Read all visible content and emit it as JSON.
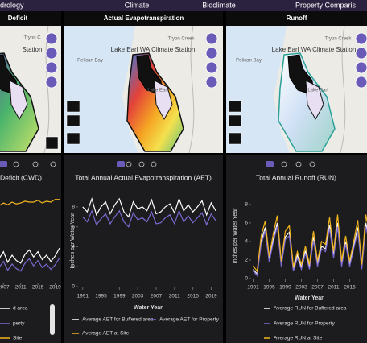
{
  "nav": [
    "drology",
    "Climate",
    "Bioclimate",
    "Property Comparis"
  ],
  "maps": [
    {
      "title": "Deficit",
      "labels": [
        "Tryon C",
        "Station"
      ]
    },
    {
      "title": "Actual Evapotranspiration",
      "labels": [
        "Tryon Creek",
        "Lake Earl WA Climate Station",
        "Pelican Bay",
        "Lake Earl"
      ]
    },
    {
      "title": "Runoff",
      "labels": [
        "Tryon Creek",
        "Lake Earl WA Climate Station",
        "Pelican Bay",
        "Lake Earl"
      ]
    }
  ],
  "chart_data": [
    {
      "type": "line",
      "title": "Deficit (CWD)",
      "x": [
        2006,
        2007,
        2008,
        2009,
        2010,
        2011,
        2012,
        2013,
        2014,
        2015,
        2016,
        2017,
        2018,
        2019,
        2020
      ],
      "xlim": [
        2006.2,
        2020.4
      ],
      "xticks": [
        2007,
        2011,
        2015,
        2019
      ],
      "ylim": [
        0,
        10
      ],
      "series": [
        {
          "name": "d area",
          "color": "#ffffff",
          "values": [
            2.6,
            3.4,
            2.2,
            3.0,
            2.4,
            2.1,
            3.1,
            3.6,
            2.8,
            3.4,
            2.5,
            3.0,
            2.3,
            2.9,
            3.8
          ]
        },
        {
          "name": "perty",
          "color": "#7b68d0",
          "values": [
            1.6,
            2.3,
            1.3,
            2.0,
            1.5,
            1.2,
            2.1,
            2.6,
            1.8,
            2.4,
            1.6,
            2.0,
            1.4,
            1.9,
            2.7
          ]
        },
        {
          "name": "Site",
          "color": "#f2b51c",
          "values": [
            8.6,
            8.9,
            8.7,
            9.0,
            8.8,
            8.9,
            9.1,
            9.0,
            9.0,
            9.2,
            8.9,
            9.1,
            9.0,
            9.3,
            9.3
          ]
        }
      ]
    },
    {
      "type": "line",
      "title": "Total Annual Actual Evapotranspiration (AET)",
      "x_label": "Water Year",
      "y_label": "Inches per Water Year",
      "x": [
        1991,
        1992,
        1993,
        1994,
        1995,
        1996,
        1997,
        1998,
        1999,
        2000,
        2001,
        2002,
        2003,
        2004,
        2005,
        2006,
        2007,
        2008,
        2009,
        2010,
        2011,
        2012,
        2013,
        2014,
        2015,
        2016,
        2017,
        2018,
        2019,
        2020
      ],
      "xlim": [
        1990,
        2020.5
      ],
      "xticks": [
        1991,
        1995,
        1999,
        2003,
        2007,
        2011,
        2015,
        2019
      ],
      "ylim": [
        0,
        9.2
      ],
      "yticks": [
        0,
        2,
        4,
        6,
        8
      ],
      "series": [
        {
          "name": "Average AET for Buffered area",
          "color": "#ffffff",
          "values": [
            8,
            7.5,
            8.8,
            7.2,
            8,
            8.5,
            7.3,
            8.2,
            8.8,
            7.5,
            7,
            8.5,
            7.8,
            8,
            7.6,
            8.7,
            7.3,
            7.5,
            8,
            8.3,
            7.4,
            8.8,
            7.6,
            8.2,
            7.5,
            8,
            8.6,
            7.2,
            8.4,
            7.6
          ]
        },
        {
          "name": "Average AET for Property",
          "color": "#7b68d0",
          "values": [
            7,
            6.5,
            7.6,
            6.2,
            6.8,
            7.3,
            6.3,
            7,
            7.6,
            6.5,
            6,
            7.4,
            6.7,
            6.9,
            6.5,
            7.5,
            6.3,
            6.4,
            6.9,
            7.2,
            6.3,
            7.6,
            6.5,
            7.1,
            6.4,
            6.9,
            7.4,
            6.2,
            7.3,
            6.6
          ]
        },
        {
          "name": "Average AET at Site",
          "color": "#f2b51c"
        }
      ]
    },
    {
      "type": "line",
      "title": "Total Annual Runoff (RUN)",
      "x_label": "Water Year",
      "y_label": "Inches per Water Year",
      "x": [
        1991,
        1992,
        1993,
        1994,
        1995,
        1996,
        1997,
        1998,
        1999,
        2000,
        2001,
        2002,
        2003,
        2004,
        2005,
        2006,
        2007,
        2008,
        2009,
        2010,
        2011,
        2012,
        2013,
        2014,
        2015,
        2016,
        2017,
        2018,
        2019,
        2020
      ],
      "xlim": [
        1990.5,
        2020.5
      ],
      "xticks": [
        1991,
        1995,
        1999,
        2003,
        2007,
        2011,
        2015
      ],
      "ylim": [
        0,
        9.2
      ],
      "yticks": [
        0,
        2,
        4,
        6,
        8
      ],
      "series": [
        {
          "name": "Average RUN for Buffered area",
          "color": "#ffffff",
          "values": [
            1,
            0.5,
            4,
            5.5,
            2,
            4.2,
            6,
            1.5,
            4.5,
            5,
            1,
            2.5,
            1.2,
            3,
            1.2,
            4.5,
            1.5,
            3.5,
            3.2,
            5.8,
            2.5,
            6,
            1.5,
            4,
            1.5,
            3.5,
            5.5,
            1.2,
            6,
            4
          ]
        },
        {
          "name": "Average RUN for Property",
          "color": "#7b68d0",
          "values": [
            0.8,
            0.3,
            3.7,
            5.1,
            1.8,
            3.9,
            5.6,
            1.3,
            4.2,
            4.6,
            0.8,
            2.2,
            1,
            2.7,
            1,
            4.1,
            1.3,
            3.2,
            2.9,
            5.4,
            2.2,
            5.6,
            1.3,
            3.7,
            1.3,
            3.2,
            5.1,
            1,
            5.6,
            3.7
          ]
        },
        {
          "name": "Average RUN at Site",
          "color": "#f2b51c",
          "values": [
            1.4,
            0.8,
            4.6,
            6.2,
            2.4,
            4.8,
            6.8,
            1.9,
            5.1,
            5.7,
            1.3,
            2.9,
            1.5,
            3.5,
            1.5,
            5.1,
            1.9,
            4,
            3.7,
            6.6,
            2.9,
            6.9,
            1.9,
            4.6,
            1.9,
            4,
            6.3,
            1.5,
            6.9,
            4.6
          ]
        }
      ]
    }
  ]
}
